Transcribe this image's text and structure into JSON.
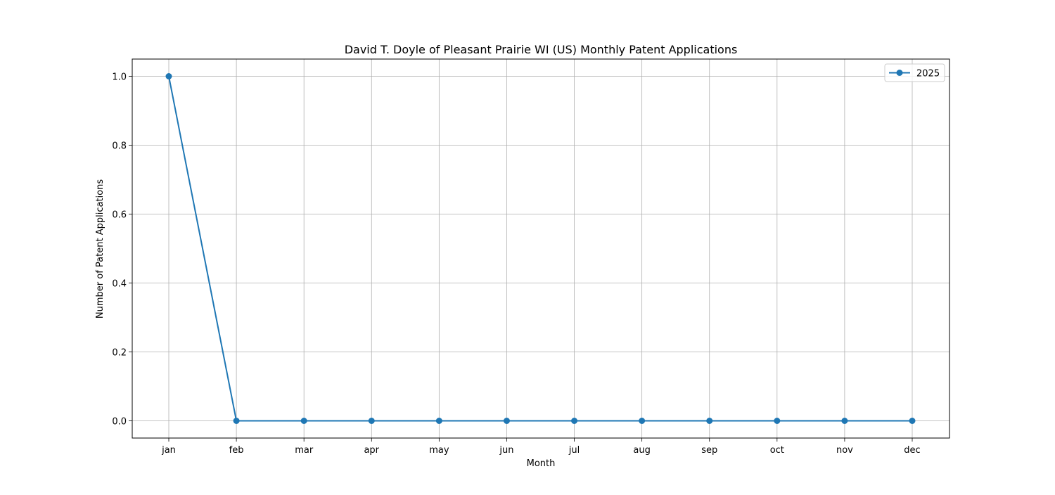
{
  "chart_data": {
    "type": "line",
    "title": "David T. Doyle of Pleasant Prairie WI (US) Monthly Patent Applications",
    "xlabel": "Month",
    "ylabel": "Number of Patent Applications",
    "categories": [
      "jan",
      "feb",
      "mar",
      "apr",
      "may",
      "jun",
      "jul",
      "aug",
      "sep",
      "oct",
      "nov",
      "dec"
    ],
    "series": [
      {
        "name": "2025",
        "values": [
          1,
          0,
          0,
          0,
          0,
          0,
          0,
          0,
          0,
          0,
          0,
          0
        ],
        "color": "#1f77b4",
        "marker": "circle"
      }
    ],
    "ylim": [
      -0.05,
      1.05
    ],
    "yticks": [
      0.0,
      0.2,
      0.4,
      0.6,
      0.8,
      1.0
    ],
    "ytick_labels": [
      "0.0",
      "0.2",
      "0.4",
      "0.6",
      "0.8",
      "1.0"
    ],
    "grid": true,
    "grid_color": "#b0b0b0",
    "legend_position": "upper right"
  }
}
